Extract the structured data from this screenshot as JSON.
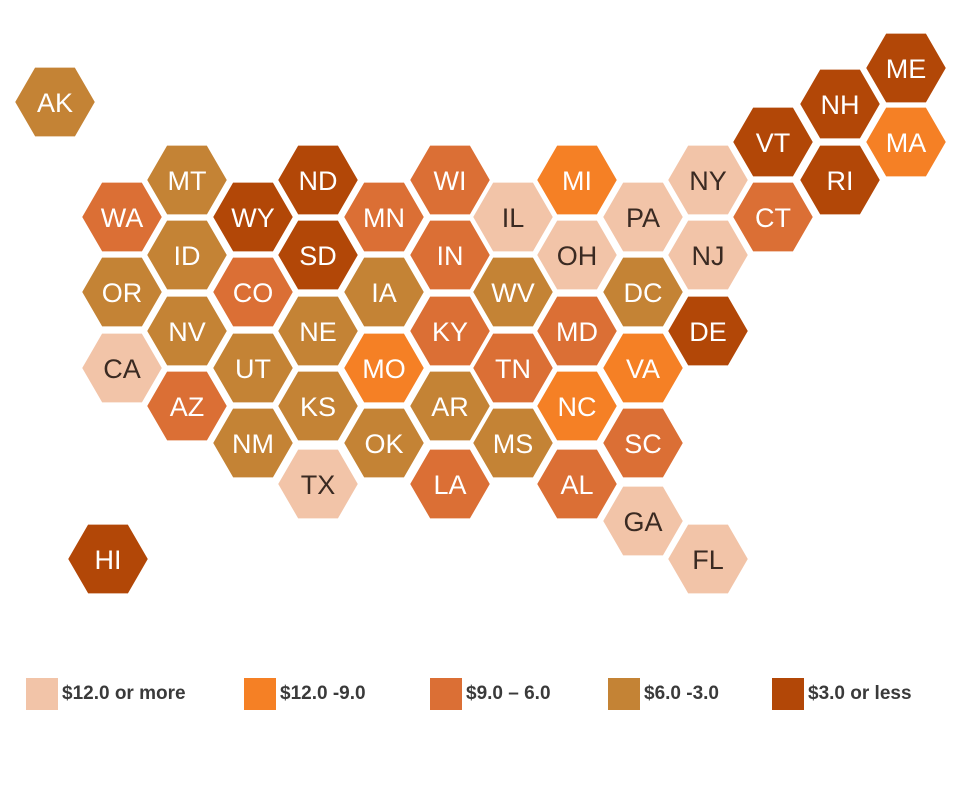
{
  "colors": {
    "c1": "#F2C4A8",
    "c2": "#F58025",
    "c3": "#DB6F35",
    "c4": "#C48335",
    "c5": "#B24707"
  },
  "legend": [
    {
      "label": "$12.0 or more",
      "color": "c1"
    },
    {
      "label": "$12.0 -9.0",
      "color": "c2"
    },
    {
      "label": "$9.0 – 6.0",
      "color": "c3"
    },
    {
      "label": "$6.0 -3.0",
      "color": "c4"
    },
    {
      "label": "$3.0 or less",
      "color": "c5"
    }
  ],
  "states": [
    {
      "abbr": "AK",
      "category": "c4"
    },
    {
      "abbr": "ME",
      "category": "c5"
    },
    {
      "abbr": "NH",
      "category": "c5"
    },
    {
      "abbr": "VT",
      "category": "c5"
    },
    {
      "abbr": "MA",
      "category": "c2"
    },
    {
      "abbr": "RI",
      "category": "c5"
    },
    {
      "abbr": "CT",
      "category": "c3"
    },
    {
      "abbr": "MT",
      "category": "c4"
    },
    {
      "abbr": "ND",
      "category": "c5"
    },
    {
      "abbr": "WI",
      "category": "c3"
    },
    {
      "abbr": "MI",
      "category": "c2"
    },
    {
      "abbr": "NY",
      "category": "c1"
    },
    {
      "abbr": "WA",
      "category": "c3"
    },
    {
      "abbr": "WY",
      "category": "c5"
    },
    {
      "abbr": "MN",
      "category": "c3"
    },
    {
      "abbr": "IL",
      "category": "c1"
    },
    {
      "abbr": "PA",
      "category": "c1"
    },
    {
      "abbr": "ID",
      "category": "c4"
    },
    {
      "abbr": "SD",
      "category": "c5"
    },
    {
      "abbr": "IN",
      "category": "c3"
    },
    {
      "abbr": "OH",
      "category": "c1"
    },
    {
      "abbr": "NJ",
      "category": "c1"
    },
    {
      "abbr": "OR",
      "category": "c4"
    },
    {
      "abbr": "CO",
      "category": "c3"
    },
    {
      "abbr": "IA",
      "category": "c4"
    },
    {
      "abbr": "WV",
      "category": "c4"
    },
    {
      "abbr": "DC",
      "category": "c4"
    },
    {
      "abbr": "NV",
      "category": "c4"
    },
    {
      "abbr": "NE",
      "category": "c4"
    },
    {
      "abbr": "KY",
      "category": "c3"
    },
    {
      "abbr": "MD",
      "category": "c3"
    },
    {
      "abbr": "DE",
      "category": "c5"
    },
    {
      "abbr": "CA",
      "category": "c1"
    },
    {
      "abbr": "UT",
      "category": "c4"
    },
    {
      "abbr": "MO",
      "category": "c2"
    },
    {
      "abbr": "TN",
      "category": "c3"
    },
    {
      "abbr": "VA",
      "category": "c2"
    },
    {
      "abbr": "AZ",
      "category": "c3"
    },
    {
      "abbr": "KS",
      "category": "c4"
    },
    {
      "abbr": "AR",
      "category": "c4"
    },
    {
      "abbr": "NC",
      "category": "c2"
    },
    {
      "abbr": "NM",
      "category": "c4"
    },
    {
      "abbr": "OK",
      "category": "c4"
    },
    {
      "abbr": "MS",
      "category": "c4"
    },
    {
      "abbr": "SC",
      "category": "c3"
    },
    {
      "abbr": "TX",
      "category": "c1"
    },
    {
      "abbr": "LA",
      "category": "c3"
    },
    {
      "abbr": "AL",
      "category": "c3"
    },
    {
      "abbr": "GA",
      "category": "c1"
    },
    {
      "abbr": "HI",
      "category": "c5"
    },
    {
      "abbr": "FL",
      "category": "c1"
    }
  ]
}
